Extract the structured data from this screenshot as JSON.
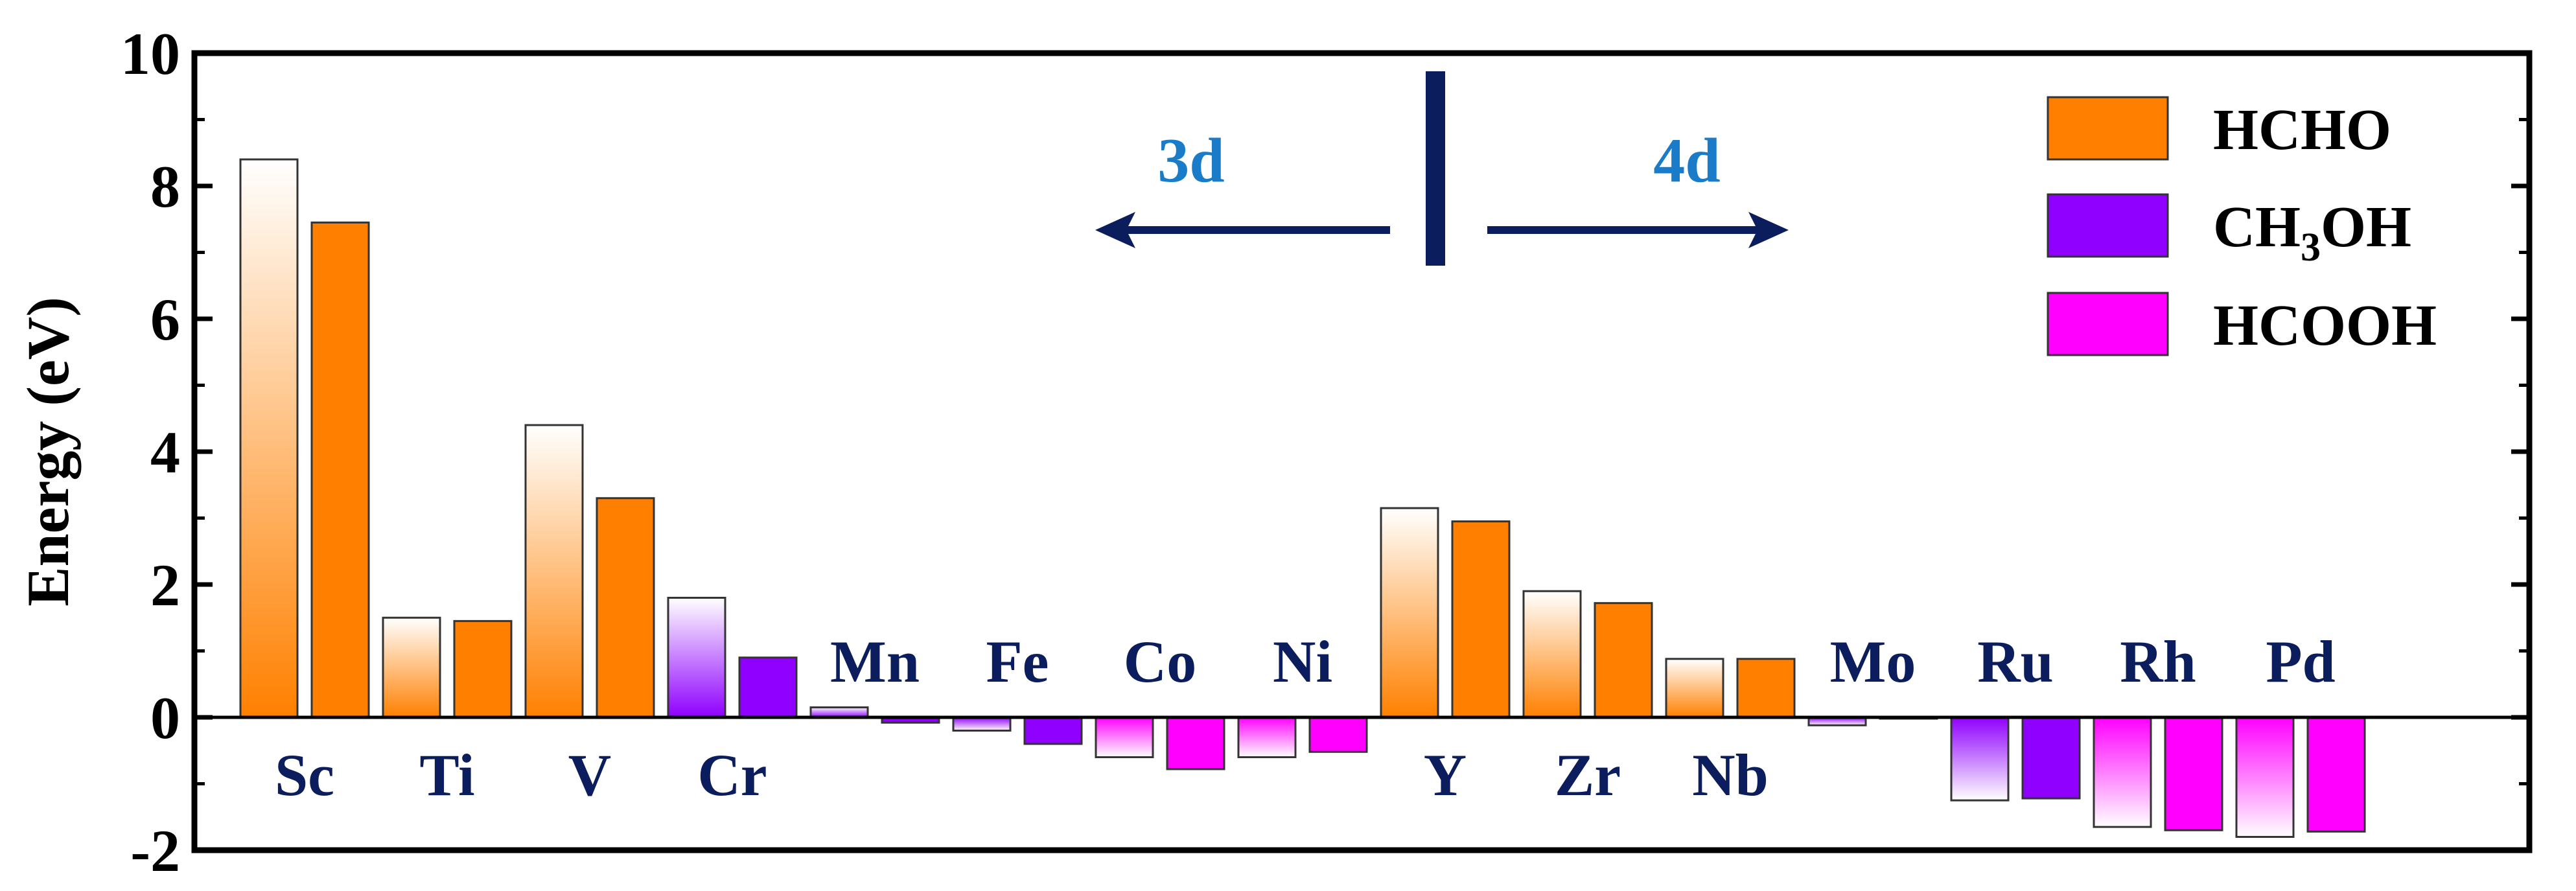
{
  "chart_data": {
    "type": "bar",
    "ylabel": "Energy (eV)",
    "ylim": [
      -2,
      10
    ],
    "yticks": [
      "-2",
      "0",
      "2",
      "4",
      "6",
      "8",
      "10"
    ],
    "categories": [
      "Sc",
      "Ti",
      "V",
      "Cr",
      "Mn",
      "Fe",
      "Co",
      "Ni",
      "Y",
      "Zr",
      "Nb",
      "Mo",
      "Ru",
      "Rh",
      "Pd"
    ],
    "label_position": [
      "below",
      "below",
      "below",
      "below",
      "above",
      "above",
      "above",
      "above",
      "below",
      "below",
      "below",
      "above",
      "above",
      "above",
      "above"
    ],
    "bar_pairs": [
      {
        "category": "Sc",
        "product": "HCHO",
        "gradient_bar": 8.4,
        "solid_bar": 7.45
      },
      {
        "category": "Ti",
        "product": "HCHO",
        "gradient_bar": 1.5,
        "solid_bar": 1.45
      },
      {
        "category": "V",
        "product": "HCHO",
        "gradient_bar": 4.4,
        "solid_bar": 3.3
      },
      {
        "category": "Cr",
        "product": "CH3OH",
        "gradient_bar": 1.8,
        "solid_bar": 0.9
      },
      {
        "category": "Mn",
        "product": "CH3OH",
        "gradient_bar": 0.15,
        "solid_bar": -0.08
      },
      {
        "category": "Fe",
        "product": "CH3OH",
        "gradient_bar": -0.2,
        "solid_bar": -0.4
      },
      {
        "category": "Co",
        "product": "HCOOH",
        "gradient_bar": -0.6,
        "solid_bar": -0.78
      },
      {
        "category": "Ni",
        "product": "HCOOH",
        "gradient_bar": -0.6,
        "solid_bar": -0.52
      },
      {
        "category": "Y",
        "product": "HCHO",
        "gradient_bar": 3.15,
        "solid_bar": 2.95
      },
      {
        "category": "Zr",
        "product": "HCHO",
        "gradient_bar": 1.9,
        "solid_bar": 1.72
      },
      {
        "category": "Nb",
        "product": "HCHO",
        "gradient_bar": 0.88,
        "solid_bar": 0.88
      },
      {
        "category": "Mo",
        "product": "CH3OH",
        "gradient_bar": -0.12,
        "solid_bar": -0.02
      },
      {
        "category": "Ru",
        "product": "CH3OH",
        "gradient_bar": -1.25,
        "solid_bar": -1.22
      },
      {
        "category": "Rh",
        "product": "HCOOH",
        "gradient_bar": -1.65,
        "solid_bar": -1.7
      },
      {
        "category": "Pd",
        "product": "HCOOH",
        "gradient_bar": -1.8,
        "solid_bar": -1.72
      }
    ],
    "legend": [
      {
        "label": "HCHO",
        "color": "#ff8000"
      },
      {
        "label": "CH",
        "sub": "3",
        "tail": "OH",
        "color": "#8f00ff"
      },
      {
        "label": "HCOOH",
        "color": "#ff00ff"
      }
    ],
    "legend_position": "top-right",
    "annotations": {
      "left_label": "3d",
      "right_label": "4d",
      "arrow_color": "#0b1d5c",
      "label_color": "#1a7cc9"
    },
    "grid": false
  }
}
